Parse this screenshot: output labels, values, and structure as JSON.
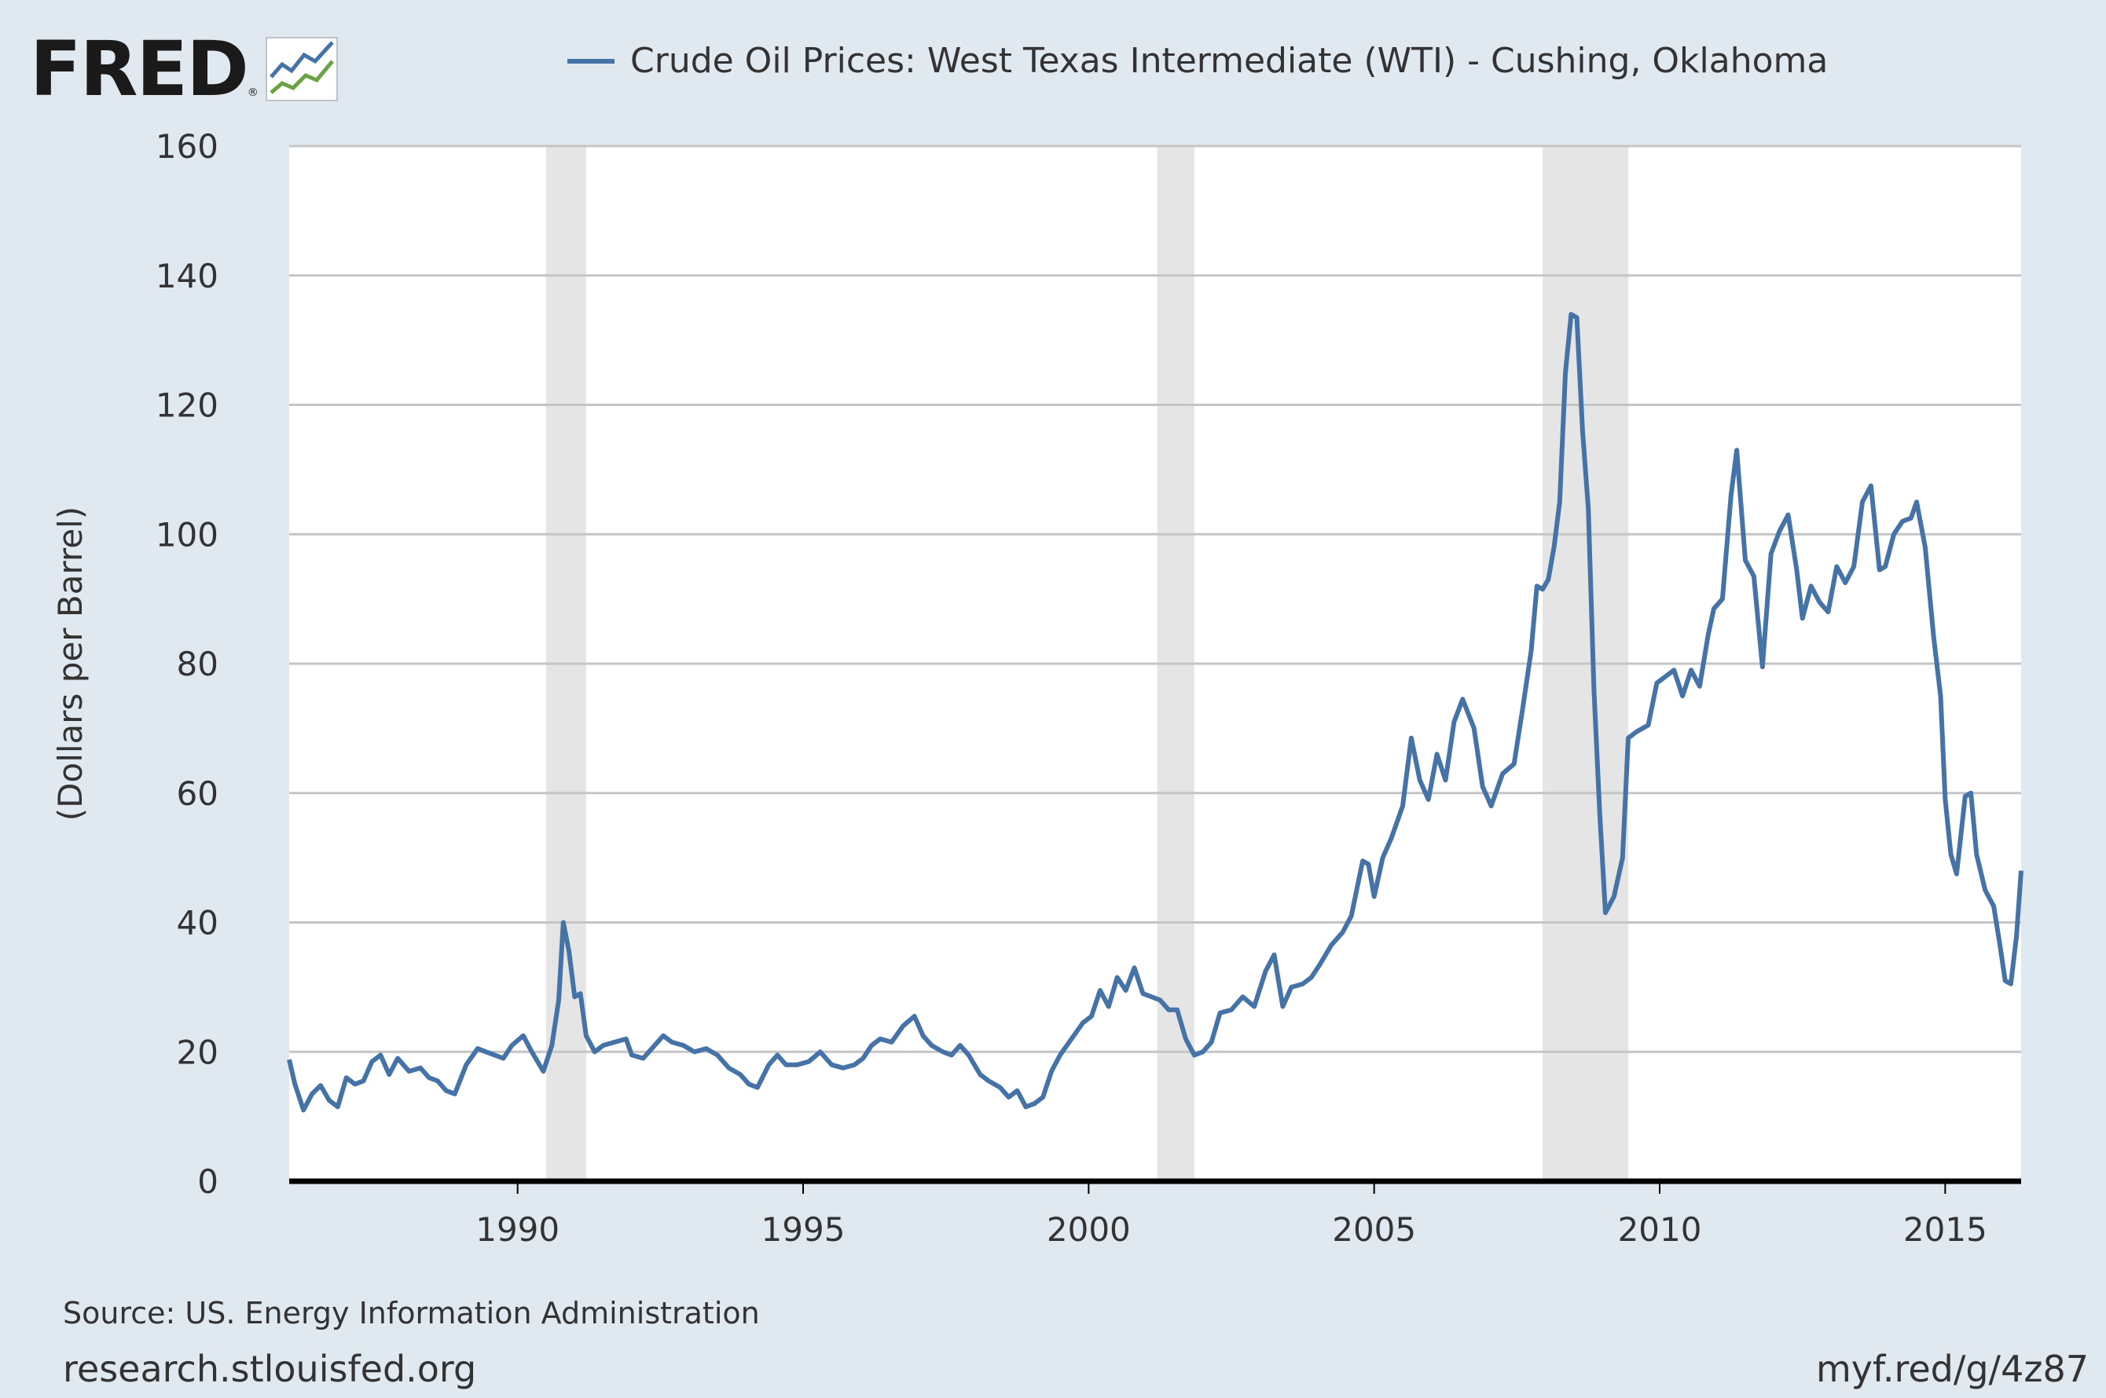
{
  "header": {
    "logo_text": "FRED",
    "logo_registered": "®",
    "legend_label": "Crude Oil Prices: West Texas Intermediate (WTI) - Cushing, Oklahoma"
  },
  "colors": {
    "series": "#4572a7",
    "recession": "#e5e5e5",
    "background": "#e1e9f0",
    "plot_background": "#ffffff",
    "grid": "#c5c5c5",
    "axis": "#000000"
  },
  "chart_data": {
    "type": "line",
    "title": "Crude Oil Prices: West Texas Intermediate (WTI) - Cushing, Oklahoma",
    "xlabel": "",
    "ylabel": "(Dollars per Barrel)",
    "xlim": [
      1986.0,
      2016.33
    ],
    "ylim": [
      0,
      160
    ],
    "yticks": [
      0,
      20,
      40,
      60,
      80,
      100,
      120,
      140,
      160
    ],
    "xticks": [
      1990,
      1995,
      2000,
      2005,
      2010,
      2015
    ],
    "recessions": [
      [
        1990.5,
        1991.2
      ],
      [
        2001.2,
        2001.85
      ],
      [
        2007.95,
        2009.45
      ]
    ],
    "series": [
      {
        "name": "Crude Oil Prices: West Texas Intermediate (WTI) - Cushing, Oklahoma",
        "points": [
          [
            1986.0,
            18.8
          ],
          [
            1986.1,
            15.0
          ],
          [
            1986.25,
            11.0
          ],
          [
            1986.4,
            13.5
          ],
          [
            1986.55,
            14.8
          ],
          [
            1986.7,
            12.5
          ],
          [
            1986.85,
            11.5
          ],
          [
            1987.0,
            16.0
          ],
          [
            1987.15,
            15.0
          ],
          [
            1987.3,
            15.5
          ],
          [
            1987.45,
            18.5
          ],
          [
            1987.6,
            19.5
          ],
          [
            1987.75,
            16.5
          ],
          [
            1987.9,
            19.0
          ],
          [
            1988.1,
            17.0
          ],
          [
            1988.3,
            17.5
          ],
          [
            1988.45,
            16.0
          ],
          [
            1988.6,
            15.5
          ],
          [
            1988.75,
            14.0
          ],
          [
            1988.9,
            13.5
          ],
          [
            1989.1,
            18.0
          ],
          [
            1989.3,
            20.5
          ],
          [
            1989.45,
            20.0
          ],
          [
            1989.6,
            19.5
          ],
          [
            1989.75,
            19.0
          ],
          [
            1989.9,
            21.0
          ],
          [
            1990.1,
            22.5
          ],
          [
            1990.25,
            20.0
          ],
          [
            1990.45,
            17.0
          ],
          [
            1990.6,
            21.0
          ],
          [
            1990.72,
            28.0
          ],
          [
            1990.8,
            40.0
          ],
          [
            1990.9,
            35.5
          ],
          [
            1991.0,
            28.5
          ],
          [
            1991.1,
            29.0
          ],
          [
            1991.2,
            22.5
          ],
          [
            1991.35,
            20.0
          ],
          [
            1991.5,
            21.0
          ],
          [
            1991.7,
            21.5
          ],
          [
            1991.9,
            22.0
          ],
          [
            1992.0,
            19.5
          ],
          [
            1992.2,
            19.0
          ],
          [
            1992.4,
            21.0
          ],
          [
            1992.55,
            22.5
          ],
          [
            1992.7,
            21.5
          ],
          [
            1992.9,
            21.0
          ],
          [
            1993.1,
            20.0
          ],
          [
            1993.3,
            20.5
          ],
          [
            1993.5,
            19.5
          ],
          [
            1993.7,
            17.5
          ],
          [
            1993.9,
            16.5
          ],
          [
            1994.05,
            15.0
          ],
          [
            1994.2,
            14.5
          ],
          [
            1994.4,
            18.0
          ],
          [
            1994.55,
            19.5
          ],
          [
            1994.7,
            18.0
          ],
          [
            1994.9,
            18.0
          ],
          [
            1995.1,
            18.5
          ],
          [
            1995.3,
            20.0
          ],
          [
            1995.5,
            18.0
          ],
          [
            1995.7,
            17.5
          ],
          [
            1995.9,
            18.0
          ],
          [
            1996.05,
            19.0
          ],
          [
            1996.2,
            21.0
          ],
          [
            1996.35,
            22.0
          ],
          [
            1996.55,
            21.5
          ],
          [
            1996.75,
            24.0
          ],
          [
            1996.95,
            25.5
          ],
          [
            1997.1,
            22.5
          ],
          [
            1997.25,
            21.0
          ],
          [
            1997.45,
            20.0
          ],
          [
            1997.6,
            19.5
          ],
          [
            1997.75,
            21.0
          ],
          [
            1997.9,
            19.5
          ],
          [
            1998.1,
            16.5
          ],
          [
            1998.25,
            15.5
          ],
          [
            1998.45,
            14.5
          ],
          [
            1998.6,
            13.0
          ],
          [
            1998.75,
            14.0
          ],
          [
            1998.9,
            11.5
          ],
          [
            1999.05,
            12.0
          ],
          [
            1999.2,
            13.0
          ],
          [
            1999.35,
            17.0
          ],
          [
            1999.5,
            19.5
          ],
          [
            1999.7,
            22.0
          ],
          [
            1999.9,
            24.5
          ],
          [
            2000.05,
            25.5
          ],
          [
            2000.2,
            29.5
          ],
          [
            2000.35,
            27.0
          ],
          [
            2000.5,
            31.5
          ],
          [
            2000.65,
            29.5
          ],
          [
            2000.8,
            33.0
          ],
          [
            2000.95,
            29.0
          ],
          [
            2001.1,
            28.5
          ],
          [
            2001.25,
            28.0
          ],
          [
            2001.4,
            26.5
          ],
          [
            2001.55,
            26.5
          ],
          [
            2001.7,
            22.0
          ],
          [
            2001.85,
            19.5
          ],
          [
            2002.0,
            20.0
          ],
          [
            2002.15,
            21.5
          ],
          [
            2002.3,
            26.0
          ],
          [
            2002.5,
            26.5
          ],
          [
            2002.7,
            28.5
          ],
          [
            2002.9,
            27.0
          ],
          [
            2003.1,
            32.5
          ],
          [
            2003.25,
            35.0
          ],
          [
            2003.4,
            27.0
          ],
          [
            2003.55,
            30.0
          ],
          [
            2003.75,
            30.5
          ],
          [
            2003.9,
            31.5
          ],
          [
            2004.05,
            33.5
          ],
          [
            2004.25,
            36.5
          ],
          [
            2004.45,
            38.5
          ],
          [
            2004.6,
            41.0
          ],
          [
            2004.8,
            49.5
          ],
          [
            2004.9,
            49.0
          ],
          [
            2005.0,
            44.0
          ],
          [
            2005.15,
            50.0
          ],
          [
            2005.3,
            53.0
          ],
          [
            2005.5,
            58.0
          ],
          [
            2005.65,
            68.5
          ],
          [
            2005.8,
            62.0
          ],
          [
            2005.95,
            59.0
          ],
          [
            2006.1,
            66.0
          ],
          [
            2006.25,
            62.0
          ],
          [
            2006.4,
            71.0
          ],
          [
            2006.55,
            74.5
          ],
          [
            2006.75,
            70.0
          ],
          [
            2006.9,
            61.0
          ],
          [
            2007.05,
            58.0
          ],
          [
            2007.25,
            63.0
          ],
          [
            2007.45,
            64.5
          ],
          [
            2007.6,
            73.0
          ],
          [
            2007.75,
            82.0
          ],
          [
            2007.85,
            92.0
          ],
          [
            2007.95,
            91.5
          ],
          [
            2008.05,
            93.0
          ],
          [
            2008.15,
            98.0
          ],
          [
            2008.25,
            105.0
          ],
          [
            2008.35,
            125.0
          ],
          [
            2008.45,
            134.0
          ],
          [
            2008.55,
            133.5
          ],
          [
            2008.65,
            116.0
          ],
          [
            2008.75,
            104.0
          ],
          [
            2008.85,
            76.0
          ],
          [
            2008.95,
            57.0
          ],
          [
            2009.05,
            41.5
          ],
          [
            2009.2,
            44.0
          ],
          [
            2009.35,
            50.0
          ],
          [
            2009.45,
            68.5
          ],
          [
            2009.6,
            69.5
          ],
          [
            2009.8,
            70.5
          ],
          [
            2009.95,
            77.0
          ],
          [
            2010.1,
            78.0
          ],
          [
            2010.25,
            79.0
          ],
          [
            2010.4,
            75.0
          ],
          [
            2010.55,
            79.0
          ],
          [
            2010.7,
            76.5
          ],
          [
            2010.85,
            84.5
          ],
          [
            2010.95,
            88.5
          ],
          [
            2011.1,
            90.0
          ],
          [
            2011.25,
            106.0
          ],
          [
            2011.35,
            113.0
          ],
          [
            2011.5,
            96.0
          ],
          [
            2011.65,
            93.5
          ],
          [
            2011.8,
            79.5
          ],
          [
            2011.95,
            97.0
          ],
          [
            2012.1,
            100.5
          ],
          [
            2012.25,
            103.0
          ],
          [
            2012.4,
            94.5
          ],
          [
            2012.5,
            87.0
          ],
          [
            2012.65,
            92.0
          ],
          [
            2012.8,
            89.5
          ],
          [
            2012.95,
            88.0
          ],
          [
            2013.1,
            95.0
          ],
          [
            2013.25,
            92.5
          ],
          [
            2013.4,
            95.0
          ],
          [
            2013.55,
            105.0
          ],
          [
            2013.7,
            107.5
          ],
          [
            2013.85,
            94.5
          ],
          [
            2013.95,
            95.0
          ],
          [
            2014.1,
            100.0
          ],
          [
            2014.25,
            102.0
          ],
          [
            2014.4,
            102.5
          ],
          [
            2014.5,
            105.0
          ],
          [
            2014.65,
            98.0
          ],
          [
            2014.8,
            84.0
          ],
          [
            2014.92,
            75.0
          ],
          [
            2015.0,
            59.0
          ],
          [
            2015.1,
            50.5
          ],
          [
            2015.2,
            47.5
          ],
          [
            2015.35,
            59.5
          ],
          [
            2015.45,
            60.0
          ],
          [
            2015.55,
            50.5
          ],
          [
            2015.7,
            45.0
          ],
          [
            2015.85,
            42.5
          ],
          [
            2015.95,
            37.0
          ],
          [
            2016.05,
            31.0
          ],
          [
            2016.15,
            30.5
          ],
          [
            2016.25,
            38.0
          ],
          [
            2016.33,
            48.0
          ]
        ]
      }
    ]
  },
  "footer": {
    "source": "Source: US. Energy Information Administration",
    "site": "research.stlouisfed.org",
    "short_link": "myf.red/g/4z87"
  }
}
